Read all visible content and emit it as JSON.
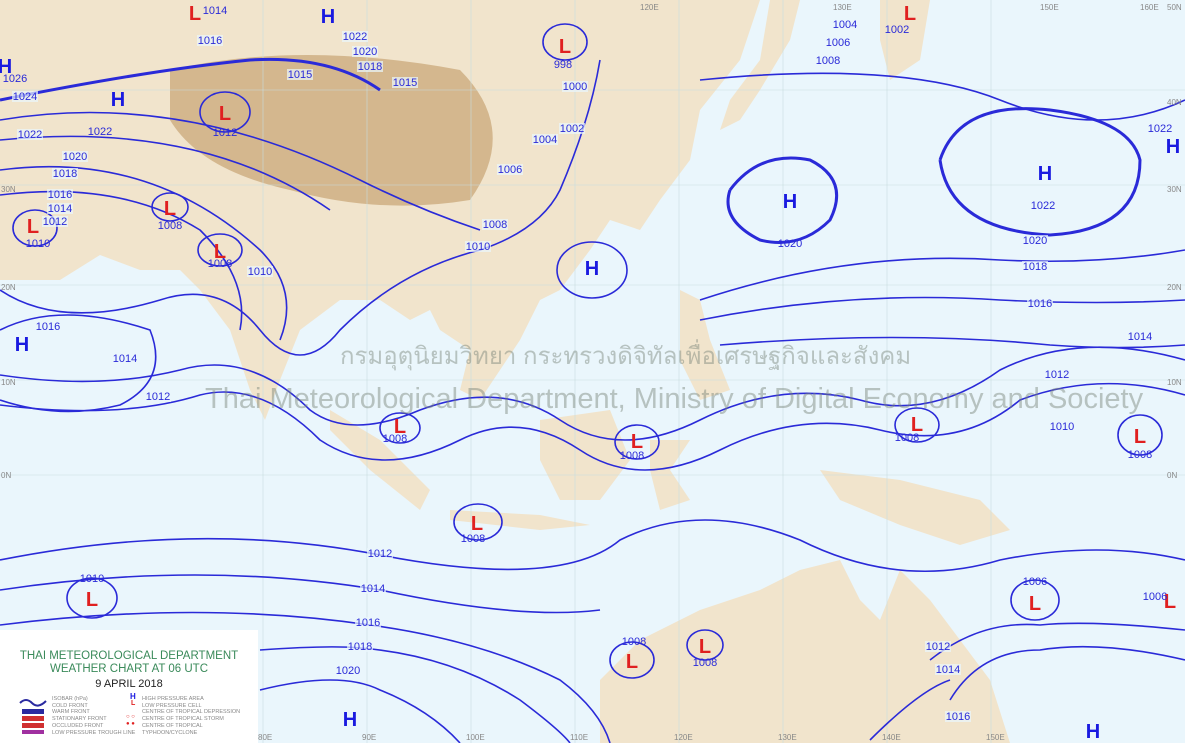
{
  "legend": {
    "org": "THAI METEOROLOGICAL DEPARTMENT",
    "title": "WEATHER CHART AT   06   UTC",
    "date": "9 APRIL 2018",
    "line_items": [
      "ISOBAR (hPa)",
      "COLD FRONT",
      "WARM FRONT",
      "STATIONARY FRONT",
      "OCCLUDED FRONT",
      "LOW PRESSURE TROUGH LINE"
    ],
    "symbol_items": [
      "HIGH PRESSURE AREA",
      "LOW PRESSURE CELL",
      "CENTRE OF TROPICAL DEPRESSION",
      "CENTRE OF TROPICAL STORM",
      "CENTRE OF TROPICAL TYPHOON/CYCLONE"
    ]
  },
  "watermark": {
    "thai": "กรมอุตุนิยมวิทยา กระทรวงดิจิทัลเพื่อเศรษฐกิจและสังคม",
    "english": "Thai Meteorological Department, Ministry of Digital Economy and Society"
  },
  "grid_labels": {
    "lon_bottom": [
      "80E",
      "90E",
      "100E",
      "110E",
      "120E",
      "130E",
      "140E",
      "150E"
    ],
    "lon_top": [
      "120E",
      "130E",
      "150E",
      "160E"
    ],
    "lat_left": [
      "30N",
      "20N",
      "10N",
      "0N"
    ],
    "lat_right": [
      "50N",
      "40N",
      "30N",
      "20N",
      "10N",
      "0N"
    ]
  },
  "pressure_centers": [
    {
      "type": "H",
      "value": "1026"
    },
    {
      "type": "L",
      "value": "1014"
    },
    {
      "type": "H",
      "value": ""
    },
    {
      "type": "H",
      "value": "1022"
    },
    {
      "type": "L",
      "value": "1012"
    },
    {
      "type": "L",
      "value": "1008"
    },
    {
      "type": "L",
      "value": "1010"
    },
    {
      "type": "L",
      "value": "1008"
    },
    {
      "type": "L",
      "value": "998"
    },
    {
      "type": "H",
      "value": ""
    },
    {
      "type": "H",
      "value": "1020"
    },
    {
      "type": "H",
      "value": "1022"
    },
    {
      "type": "H",
      "value": "1022"
    },
    {
      "type": "L",
      "value": "1002"
    },
    {
      "type": "H",
      "value": "1016"
    },
    {
      "type": "L",
      "value": "1008"
    },
    {
      "type": "L",
      "value": "1008"
    },
    {
      "type": "L",
      "value": "1008"
    },
    {
      "type": "L",
      "value": "1008"
    },
    {
      "type": "L",
      "value": "1008"
    },
    {
      "type": "L",
      "value": "1010"
    },
    {
      "type": "L",
      "value": "1006"
    },
    {
      "type": "L",
      "value": "1008"
    },
    {
      "type": "L",
      "value": "1008"
    },
    {
      "type": "H",
      "value": ""
    },
    {
      "type": "H",
      "value": ""
    },
    {
      "type": "L",
      "value": "1006"
    }
  ],
  "isobar_labels": [
    "1014",
    "1012",
    "1012",
    "1014",
    "1016",
    "1018",
    "1020",
    "1018",
    "1016",
    "1014",
    "1012",
    "1010",
    "1012",
    "1014",
    "1016",
    "1020",
    "1024",
    "1022",
    "1020",
    "1018",
    "1016",
    "1014",
    "1012",
    "1010",
    "1015",
    "1015",
    "1016",
    "1018",
    "1020",
    "1022",
    "1000",
    "1002",
    "1004",
    "1006",
    "1008",
    "1010",
    "1004",
    "1006",
    "1008"
  ],
  "colors": {
    "ocean": "#eaf6fc",
    "land": "#f1e4cc",
    "mountain": "#c9a87a",
    "isobar": "#2a2ad8",
    "high": "#1a1ae0",
    "low": "#e02020",
    "legend_title": "#3a8a5a"
  }
}
